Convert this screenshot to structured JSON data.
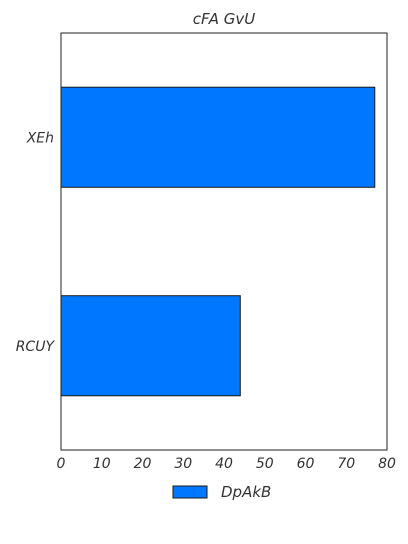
{
  "chart_data": {
    "type": "bar",
    "orientation": "horizontal",
    "title": "cFA GvU",
    "categories": [
      "XEh",
      "RCUY"
    ],
    "series": [
      {
        "name": "DpAkB",
        "values": [
          77,
          44
        ]
      }
    ],
    "xlabel": "",
    "ylabel": "",
    "xlim": [
      0,
      80
    ],
    "xticks": [
      "0",
      "10",
      "20",
      "30",
      "40",
      "50",
      "60",
      "70",
      "80"
    ],
    "grid": false,
    "legend_position": "bottom-center",
    "colors": {
      "bar": "#0077ff",
      "bar_edge": "#1a1a1a",
      "axis": "#222222",
      "text": "#333333"
    }
  }
}
